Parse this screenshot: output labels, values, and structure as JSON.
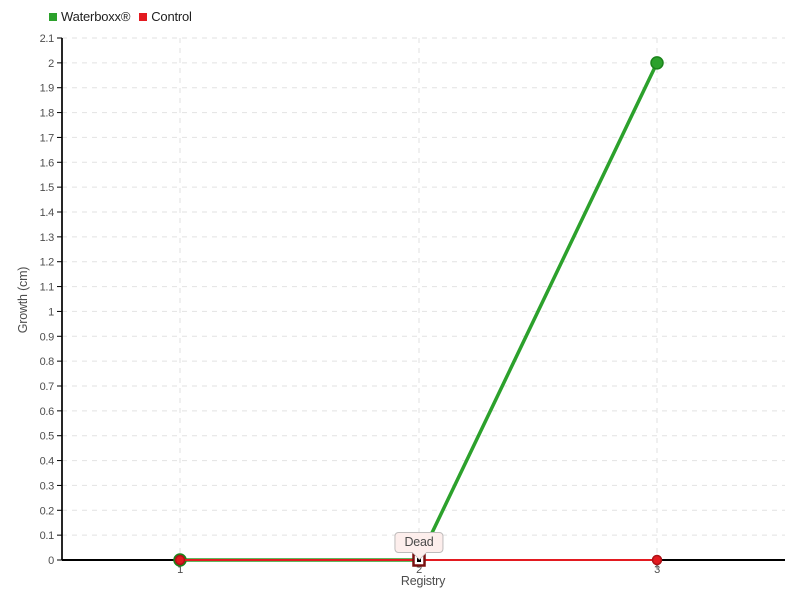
{
  "chart_data": {
    "type": "line",
    "categories": [
      "1",
      "2",
      "3"
    ],
    "series": [
      {
        "name": "Waterboxx®",
        "values": [
          0,
          0,
          2
        ],
        "color": "#2CA12C",
        "bullet_border": "#1B831B",
        "line_width": 3.5,
        "bullet_radius": 6
      },
      {
        "name": "Control",
        "values": [
          0,
          0,
          0
        ],
        "color": "#E31A20",
        "bullet_border": "#AD1217",
        "line_width": 2,
        "bullet_radius": 4.5
      }
    ],
    "title": "",
    "xlabel": "Registry",
    "ylabel": "Growth (cm)",
    "ylim": [
      0,
      2.1
    ],
    "ytick_step": 0.1,
    "grid": true,
    "legend_position": "top-left",
    "annotation": {
      "label": "Dead",
      "category": "2",
      "value": 0,
      "marker_border": "#7A1111",
      "marker_fill": "#ffffff",
      "marker_center": "#000000"
    }
  },
  "colors": {
    "background": "#ffffff",
    "grid": "#e2e2e2",
    "axis": "#000000",
    "tick_text": "#4d4d4d",
    "balloon_bg": "#fdeeec",
    "balloon_border": "#bfbcbc"
  }
}
